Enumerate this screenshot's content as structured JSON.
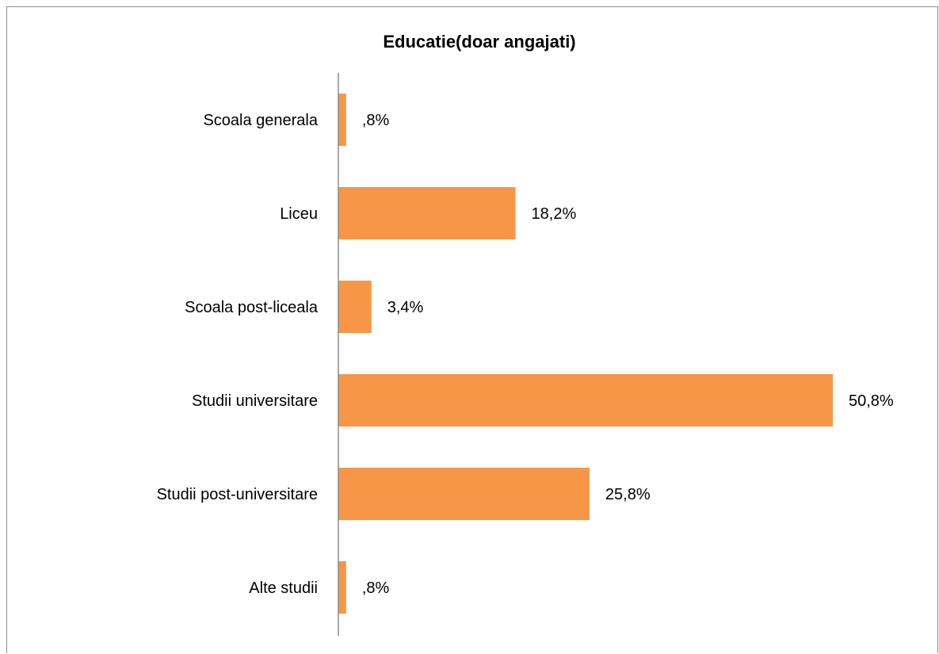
{
  "chart_data": {
    "type": "bar",
    "orientation": "horizontal",
    "title": "Educatie(doar angajati)",
    "xlabel": "",
    "ylabel": "",
    "categories": [
      "Scoala generala",
      "Liceu",
      "Scoala post-liceala",
      "Studii universitare",
      "Studii post-universitare",
      "Alte studii"
    ],
    "values": [
      0.8,
      18.2,
      3.4,
      50.8,
      25.8,
      0.8
    ],
    "value_labels": [
      ",8%",
      "18,2%",
      "3,4%",
      "50,8%",
      "25,8%",
      ",8%"
    ],
    "xlim": [
      0,
      50.8
    ],
    "grid": false,
    "legend": "none",
    "bar_color": "#F79646"
  }
}
